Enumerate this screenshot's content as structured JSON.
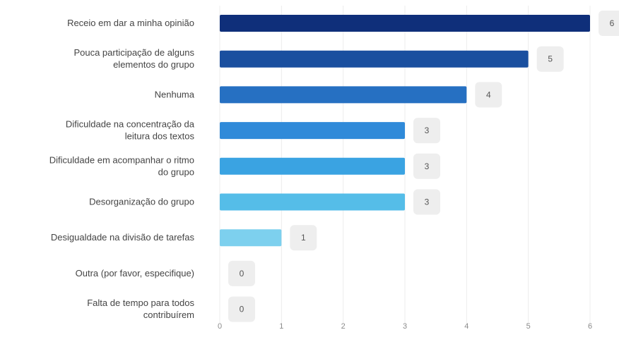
{
  "chart_data": {
    "type": "bar",
    "orientation": "horizontal",
    "categories": [
      [
        "Receio em dar a minha opinião"
      ],
      [
        "Pouca participação de alguns",
        "elementos do grupo"
      ],
      [
        "Nenhuma"
      ],
      [
        "Dificuldade na concentração da",
        "leitura dos textos"
      ],
      [
        "Dificuldade em acompanhar o ritmo",
        "do grupo"
      ],
      [
        "Desorganização do grupo"
      ],
      [
        "Desigualdade na divisão de tarefas"
      ],
      [
        "Outra (por favor, especifique)"
      ],
      [
        "Falta de tempo para todos",
        "contribuírem"
      ]
    ],
    "values": [
      6,
      5,
      4,
      3,
      3,
      3,
      1,
      0,
      0
    ],
    "value_labels": [
      "6",
      "5",
      "4",
      "3",
      "3",
      "3",
      "1",
      "0",
      "0"
    ],
    "xticks": [
      "0",
      "1",
      "2",
      "3",
      "4",
      "5",
      "6"
    ],
    "xlim": [
      0,
      6
    ],
    "grid": true,
    "bar_colors": [
      "#0f2f7a",
      "#1a4f9f",
      "#2670c2",
      "#2f8ad9",
      "#3aa3e2",
      "#55bde8",
      "#7dd0ee",
      "#a3dcf3",
      "#bfe6f6"
    ],
    "badge_color": "#eeeeee",
    "grid_color": "#ececec"
  }
}
